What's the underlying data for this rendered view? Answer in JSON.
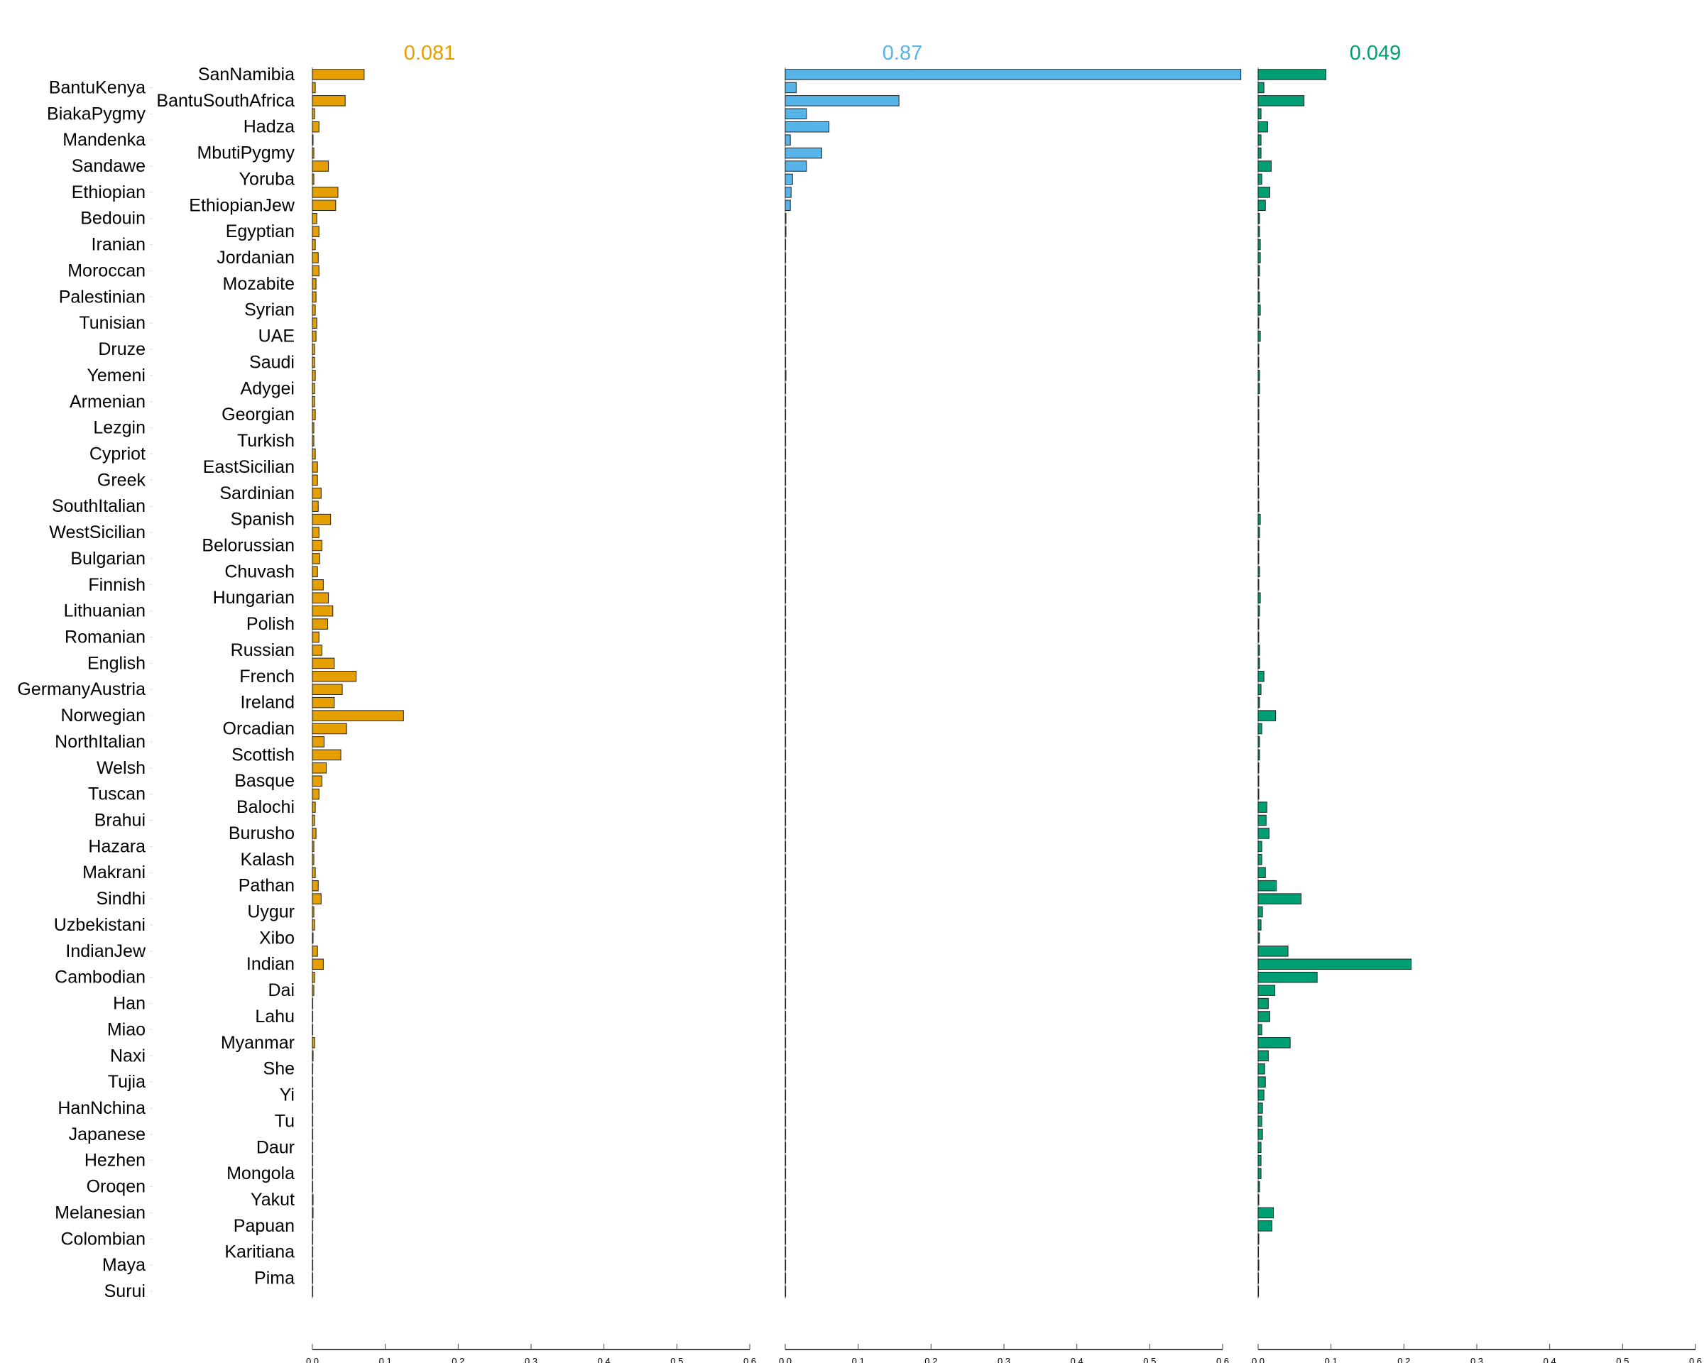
{
  "chart_data": {
    "type": "bar",
    "orientation": "horizontal",
    "categories": [
      "SanNamibia",
      "BantuKenya",
      "BantuSouthAfrica",
      "BiakaPygmy",
      "Hadza",
      "Mandenka",
      "MbutiPygmy",
      "Sandawe",
      "Yoruba",
      "Ethiopian",
      "EthiopianJew",
      "Bedouin",
      "Egyptian",
      "Iranian",
      "Jordanian",
      "Moroccan",
      "Mozabite",
      "Palestinian",
      "Syrian",
      "Tunisian",
      "UAE",
      "Druze",
      "Saudi",
      "Yemeni",
      "Adygei",
      "Armenian",
      "Georgian",
      "Lezgin",
      "Turkish",
      "Cypriot",
      "EastSicilian",
      "Greek",
      "Sardinian",
      "SouthItalian",
      "Spanish",
      "WestSicilian",
      "Belorussian",
      "Bulgarian",
      "Chuvash",
      "Finnish",
      "Hungarian",
      "Lithuanian",
      "Polish",
      "Romanian",
      "Russian",
      "English",
      "French",
      "GermanyAustria",
      "Ireland",
      "Norwegian",
      "Orcadian",
      "NorthItalian",
      "Scottish",
      "Welsh",
      "Basque",
      "Tuscan",
      "Balochi",
      "Brahui",
      "Burusho",
      "Hazara",
      "Kalash",
      "Makrani",
      "Pathan",
      "Sindhi",
      "Uygur",
      "Uzbekistani",
      "Xibo",
      "IndianJew",
      "Indian",
      "Cambodian",
      "Dai",
      "Han",
      "Lahu",
      "Miao",
      "Myanmar",
      "Naxi",
      "She",
      "Tujia",
      "Yi",
      "HanNchina",
      "Tu",
      "Japanese",
      "Daur",
      "Hezhen",
      "Mongola",
      "Oroqen",
      "Yakut",
      "Melanesian",
      "Papuan",
      "Colombian",
      "Karitiana",
      "Maya",
      "Pima",
      "Surui"
    ],
    "xlim": [
      0,
      0.6
    ],
    "xticks": [
      "0.0",
      "0.1",
      "0.2",
      "0.3",
      "0.4",
      "0.5",
      "0.6"
    ],
    "grid": false,
    "series": [
      {
        "name": "0.081",
        "color": "#E69F00",
        "values": [
          0.071,
          0.004,
          0.045,
          0.003,
          0.009,
          0.001,
          0.002,
          0.022,
          0.002,
          0.035,
          0.032,
          0.006,
          0.009,
          0.004,
          0.008,
          0.009,
          0.005,
          0.005,
          0.004,
          0.006,
          0.005,
          0.003,
          0.003,
          0.004,
          0.003,
          0.003,
          0.004,
          0.002,
          0.002,
          0.004,
          0.007,
          0.007,
          0.012,
          0.008,
          0.025,
          0.009,
          0.013,
          0.01,
          0.007,
          0.015,
          0.022,
          0.028,
          0.021,
          0.009,
          0.013,
          0.03,
          0.06,
          0.041,
          0.03,
          0.125,
          0.047,
          0.016,
          0.039,
          0.019,
          0.013,
          0.009,
          0.004,
          0.003,
          0.005,
          0.002,
          0.002,
          0.004,
          0.008,
          0.012,
          0.002,
          0.003,
          0.001,
          0.007,
          0.015,
          0.003,
          0.002,
          0.0005,
          0.0005,
          0.0003,
          0.003,
          0.001,
          0.0005,
          0.0005,
          0.0005,
          0.0005,
          0.0005,
          0.0005,
          0.0005,
          0.0005,
          0.0005,
          0.0005,
          0.001,
          0.001,
          0.0005,
          0.0005,
          0.0005,
          0.0005,
          0.0005,
          0.0005
        ]
      },
      {
        "name": "0.87",
        "color": "#56B4E9",
        "values": [
          0.625,
          0.015,
          0.156,
          0.029,
          0.06,
          0.007,
          0.05,
          0.029,
          0.01,
          0.008,
          0.007,
          0.001,
          0.001,
          0.0003,
          0.0003,
          0.0003,
          0.0003,
          0.0003,
          0.0003,
          0.0003,
          0.0003,
          0.0003,
          0.0003,
          0.001,
          0.0003,
          0.0003,
          0.0003,
          0.0003,
          0.0003,
          0.0003,
          0.0003,
          0.0003,
          0.0003,
          0.0003,
          0.0003,
          0.0003,
          0.0003,
          0.0003,
          0.0003,
          0.0003,
          0.0003,
          0.0003,
          0.0003,
          0.0003,
          0.0003,
          0.0003,
          0.0003,
          0.0003,
          0.0003,
          0.0003,
          0.0003,
          0.0003,
          0.0003,
          0.0003,
          0.0003,
          0.0003,
          0.0003,
          0.0003,
          0.0003,
          0.0003,
          0.0003,
          0.0003,
          0.0003,
          0.0003,
          0.0003,
          0.0003,
          0.0003,
          0.0003,
          0.0003,
          0.0003,
          0.0003,
          0.0003,
          0.0003,
          0.0003,
          0.0003,
          0.0003,
          0.0003,
          0.0003,
          0.0003,
          0.0003,
          0.0003,
          0.0003,
          0.0003,
          0.0003,
          0.0003,
          0.0003,
          0.0003,
          0.0003,
          0.0003,
          0.0003,
          0.0003,
          0.0003,
          0.0003,
          0.0003
        ]
      },
      {
        "name": "0.049",
        "color": "#009E73",
        "values": [
          0.093,
          0.008,
          0.063,
          0.004,
          0.013,
          0.004,
          0.004,
          0.018,
          0.005,
          0.016,
          0.01,
          0.002,
          0.002,
          0.003,
          0.003,
          0.002,
          0.001,
          0.002,
          0.003,
          0.001,
          0.003,
          0.001,
          0.001,
          0.002,
          0.002,
          0.001,
          0.001,
          0.001,
          0.001,
          0.001,
          0.001,
          0.0005,
          0.001,
          0.001,
          0.003,
          0.002,
          0.001,
          0.001,
          0.002,
          0.001,
          0.003,
          0.002,
          0.001,
          0.001,
          0.002,
          0.002,
          0.008,
          0.004,
          0.002,
          0.024,
          0.005,
          0.002,
          0.002,
          0.001,
          0.001,
          0.001,
          0.012,
          0.011,
          0.015,
          0.005,
          0.005,
          0.01,
          0.025,
          0.059,
          0.006,
          0.004,
          0.002,
          0.041,
          0.21,
          0.081,
          0.023,
          0.014,
          0.016,
          0.005,
          0.044,
          0.014,
          0.009,
          0.01,
          0.008,
          0.006,
          0.005,
          0.006,
          0.004,
          0.004,
          0.004,
          0.002,
          0.001,
          0.021,
          0.019,
          0.001,
          0.0005,
          0.001,
          0.0005,
          0.0005
        ]
      }
    ]
  }
}
